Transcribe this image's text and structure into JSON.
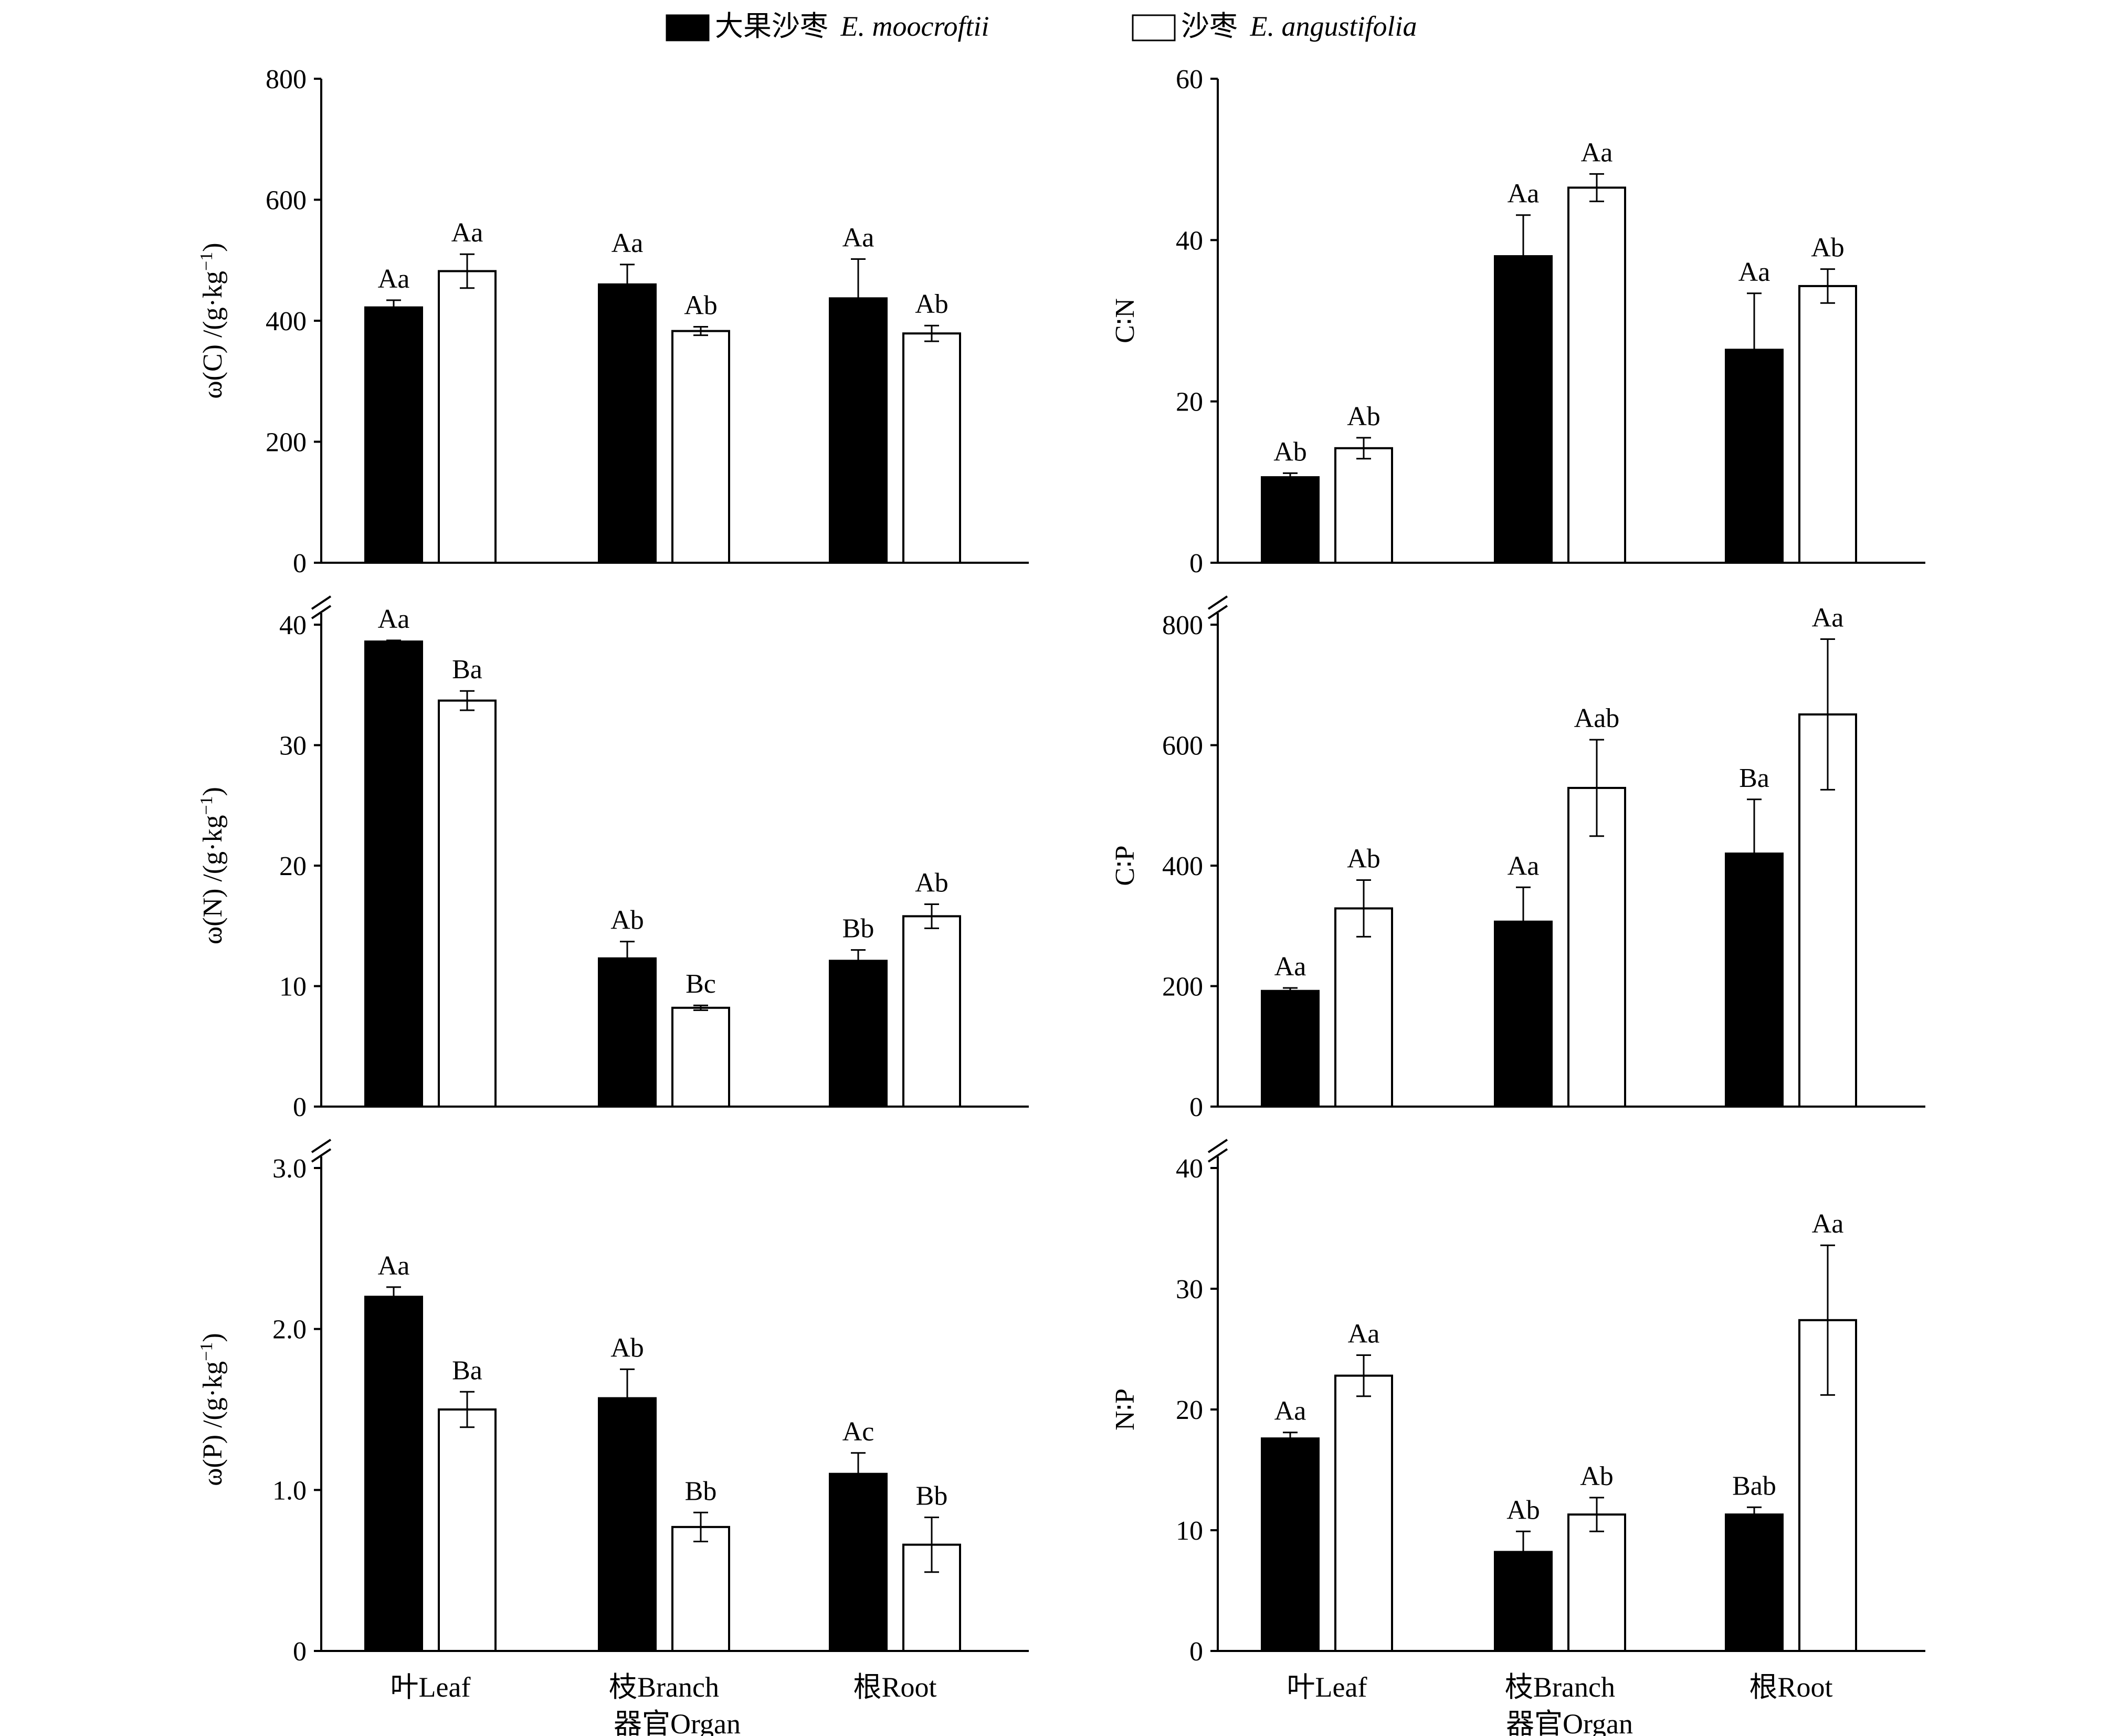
{
  "legend": [
    {
      "label_cn": "大果沙枣",
      "label_latin": "E. moocroftii",
      "color": "#000000"
    },
    {
      "label_cn": "沙枣",
      "label_latin": "E. angustifolia",
      "color": "#ffffff"
    }
  ],
  "organs": [
    "叶Leaf",
    "枝Branch",
    "根Root"
  ],
  "xlabel": "器官Organ",
  "chart_data": [
    {
      "id": "c",
      "type": "bar",
      "ylabel_main": "ω(C) /(g·kg",
      "ylabel_sup": "−1",
      "ylabel_end": ")",
      "ylim": [
        0,
        800
      ],
      "ticks": [
        0,
        200,
        400,
        600,
        800
      ],
      "tick_labels": [
        "0",
        "200",
        "400",
        "600",
        "800"
      ],
      "axis_break": false,
      "series": [
        {
          "name": "E. moocroftii",
          "values": [
            422,
            460,
            437
          ],
          "errors": [
            12,
            33,
            65
          ],
          "labels": [
            "Aa",
            "Aa",
            "Aa"
          ]
        },
        {
          "name": "E. angustifolia",
          "values": [
            482,
            383,
            379
          ],
          "errors": [
            28,
            7,
            13
          ],
          "labels": [
            "Aa",
            "Ab",
            "Ab"
          ]
        }
      ]
    },
    {
      "id": "cn",
      "type": "bar",
      "ylabel_main": "C∶N",
      "ylim": [
        0,
        60
      ],
      "ticks": [
        0,
        20,
        40,
        60
      ],
      "tick_labels": [
        "0",
        "20",
        "40",
        "60"
      ],
      "axis_break": false,
      "series": [
        {
          "name": "E. moocroftii",
          "values": [
            10.6,
            38,
            26.4
          ],
          "errors": [
            0.5,
            5.1,
            7
          ],
          "labels": [
            "Ab",
            "Aa",
            "Aa"
          ]
        },
        {
          "name": "E. angustifolia",
          "values": [
            14.2,
            46.5,
            34.3
          ],
          "errors": [
            1.3,
            1.7,
            2.1
          ],
          "labels": [
            "Ab",
            "Aa",
            "Ab"
          ]
        }
      ]
    },
    {
      "id": "n",
      "type": "bar",
      "ylabel_main": "ω(N) /(g·kg",
      "ylabel_sup": "−1",
      "ylabel_end": ")",
      "ylim": [
        0,
        40
      ],
      "ticks": [
        0,
        10,
        20,
        30,
        40
      ],
      "tick_labels": [
        "0",
        "10",
        "20",
        "30",
        "40"
      ],
      "axis_break": true,
      "series": [
        {
          "name": "E. moocroftii",
          "values": [
            38.6,
            12.3,
            12.1
          ],
          "errors": [
            0.1,
            1.4,
            0.9
          ],
          "labels": [
            "Aa",
            "Ab",
            "Bb"
          ]
        },
        {
          "name": "E. angustifolia",
          "values": [
            33.7,
            8.2,
            15.8
          ],
          "errors": [
            0.8,
            0.2,
            1.0
          ],
          "labels": [
            "Ba",
            "Bc",
            "Ab"
          ]
        }
      ]
    },
    {
      "id": "cp",
      "type": "bar",
      "ylabel_main": "C∶P",
      "ylim": [
        0,
        800
      ],
      "ticks": [
        0,
        200,
        400,
        600,
        800
      ],
      "tick_labels": [
        "0",
        "200",
        "400",
        "600",
        "800"
      ],
      "axis_break": true,
      "series": [
        {
          "name": "E. moocroftii",
          "values": [
            192,
            307,
            420
          ],
          "errors": [
            5,
            57,
            90
          ],
          "labels": [
            "Aa",
            "Aa",
            "Ba"
          ]
        },
        {
          "name": "E. angustifolia",
          "values": [
            329,
            529,
            651
          ],
          "errors": [
            47,
            80,
            125
          ],
          "labels": [
            "Ab",
            "Aab",
            "Aa"
          ]
        }
      ]
    },
    {
      "id": "p",
      "type": "bar",
      "ylabel_main": "ω(P) /(g·kg",
      "ylabel_sup": "−1",
      "ylabel_end": ")",
      "ylim": [
        0,
        3.0
      ],
      "ticks": [
        0,
        1.0,
        2.0,
        3.0
      ],
      "tick_labels": [
        "0",
        "1.0",
        "2.0",
        "3.0"
      ],
      "axis_break": true,
      "series": [
        {
          "name": "E. moocroftii",
          "values": [
            2.2,
            1.57,
            1.1
          ],
          "errors": [
            0.06,
            0.18,
            0.13
          ],
          "labels": [
            "Aa",
            "Ab",
            "Ac"
          ]
        },
        {
          "name": "E. angustifolia",
          "values": [
            1.5,
            0.77,
            0.66
          ],
          "errors": [
            0.11,
            0.09,
            0.17
          ],
          "labels": [
            "Ba",
            "Bb",
            "Bb"
          ]
        }
      ]
    },
    {
      "id": "np",
      "type": "bar",
      "ylabel_main": "N∶P",
      "ylim": [
        0,
        40
      ],
      "ticks": [
        0,
        10,
        20,
        30,
        40
      ],
      "tick_labels": [
        "0",
        "10",
        "20",
        "30",
        "40"
      ],
      "axis_break": true,
      "series": [
        {
          "name": "E. moocroftii",
          "values": [
            17.6,
            8.2,
            11.3
          ],
          "errors": [
            0.5,
            1.7,
            0.6
          ],
          "labels": [
            "Aa",
            "Ab",
            "Bab"
          ]
        },
        {
          "name": "E. angustifolia",
          "values": [
            22.8,
            11.3,
            27.4
          ],
          "errors": [
            1.7,
            1.4,
            6.2
          ],
          "labels": [
            "Aa",
            "Ab",
            "Aa"
          ]
        }
      ]
    }
  ]
}
